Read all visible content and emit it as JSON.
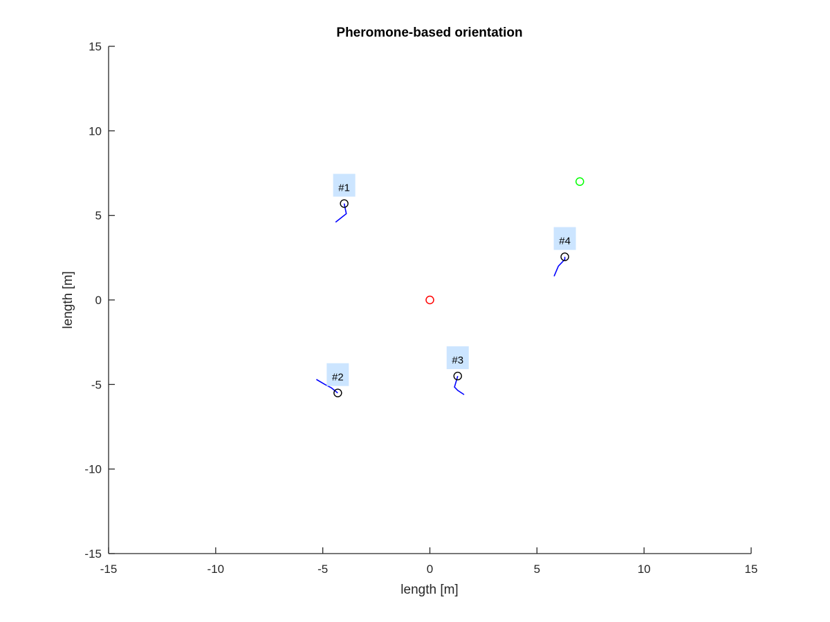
{
  "chart_data": {
    "type": "scatter",
    "title": "Pheromone-based orientation",
    "xlabel": "length [m]",
    "ylabel": "length [m]",
    "xlim": [
      -15,
      15
    ],
    "ylim": [
      -15,
      15
    ],
    "xticks": [
      -15,
      -10,
      -5,
      0,
      5,
      10,
      15
    ],
    "yticks": [
      -15,
      -10,
      -5,
      0,
      5,
      10,
      15
    ],
    "grid": false,
    "axes_box": "left-bottom",
    "colors": {
      "axis": "#262626",
      "trail": "#0000ff",
      "robot_marker": "#000000",
      "label_background": "#cce5ff",
      "origin_marker": "#ff0000",
      "goal_marker": "#00ff00"
    },
    "markers": [
      {
        "name": "origin",
        "x": 0,
        "y": 0,
        "color": "#ff0000"
      },
      {
        "name": "goal",
        "x": 7,
        "y": 7,
        "color": "#00ff00"
      }
    ],
    "robots": [
      {
        "label": "#1",
        "x": -4.0,
        "y": 5.7,
        "trail": [
          [
            -4.4,
            4.6
          ],
          [
            -4.1,
            4.9
          ],
          [
            -3.9,
            5.1
          ],
          [
            -4.0,
            5.7
          ]
        ]
      },
      {
        "label": "#2",
        "x": -4.3,
        "y": -5.5,
        "trail": [
          [
            -5.3,
            -4.7
          ],
          [
            -4.9,
            -5.0
          ],
          [
            -4.6,
            -5.2
          ],
          [
            -4.3,
            -5.5
          ]
        ]
      },
      {
        "label": "#3",
        "x": 1.3,
        "y": -4.5,
        "trail": [
          [
            1.6,
            -5.6
          ],
          [
            1.3,
            -5.35
          ],
          [
            1.15,
            -5.15
          ],
          [
            1.3,
            -4.5
          ]
        ]
      },
      {
        "label": "#4",
        "x": 6.3,
        "y": 2.55,
        "trail": [
          [
            5.8,
            1.4
          ],
          [
            6.0,
            2.0
          ],
          [
            6.3,
            2.4
          ],
          [
            6.3,
            2.55
          ]
        ]
      }
    ]
  }
}
